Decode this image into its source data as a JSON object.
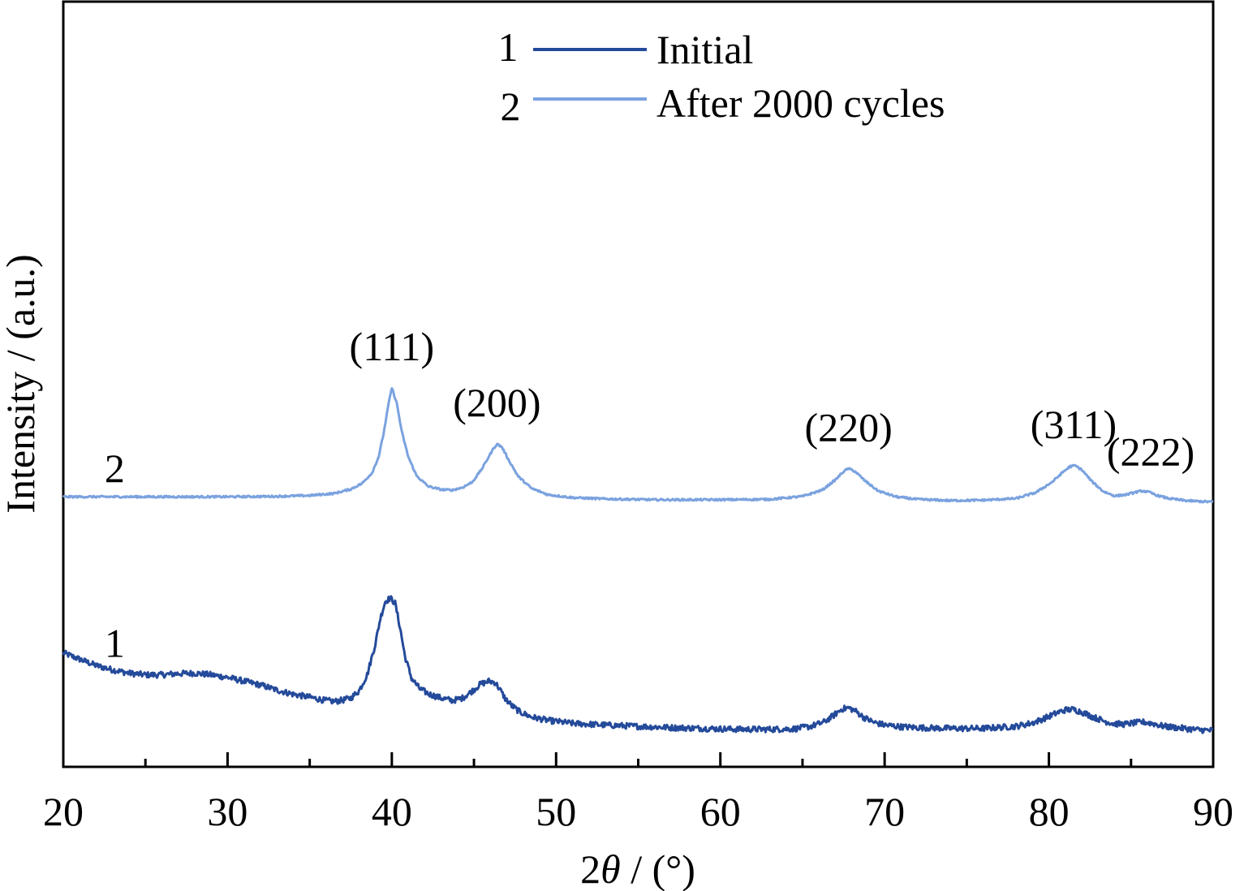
{
  "chart_data": {
    "type": "line",
    "title": "",
    "xlabel_prefix": "2",
    "xlabel_symbol": "θ",
    "xlabel_suffix": " / (°)",
    "ylabel": "Intensity / (a.u.)",
    "xlim": [
      20,
      90
    ],
    "x_ticks": [
      20,
      30,
      40,
      50,
      60,
      70,
      80,
      90
    ],
    "x_minor_ticks": [
      25,
      35,
      45,
      55,
      65,
      75,
      85
    ],
    "y_ticks": [],
    "grid": false,
    "legend_position": "top-center",
    "legend": [
      {
        "number": "1",
        "label": "Initial",
        "color": "#244a9a"
      },
      {
        "number": "2",
        "label": "After 2000 cycles",
        "color": "#7aa2df"
      }
    ],
    "series": [
      {
        "name": "Initial",
        "curve_label": "1",
        "color": "#244a9a",
        "x": [
          20,
          21,
          22,
          23,
          24,
          25,
          26,
          27,
          28,
          29,
          30,
          31,
          32,
          33,
          34,
          35,
          36,
          36.5,
          37,
          37.5,
          38,
          38.5,
          39,
          39.3,
          39.6,
          39.9,
          40.2,
          40.5,
          40.8,
          41.2,
          41.7,
          42.3,
          43,
          43.7,
          44.3,
          44.9,
          45.4,
          45.9,
          46.3,
          46.6,
          46.9,
          47.3,
          47.8,
          48.5,
          49.5,
          51,
          53,
          55,
          57,
          59,
          61,
          63,
          64.5,
          65.5,
          66.3,
          66.9,
          67.4,
          67.8,
          68.2,
          68.7,
          69.3,
          70,
          71,
          72,
          74,
          76,
          78,
          79,
          79.8,
          80.5,
          81,
          81.5,
          82,
          82.7,
          83.4,
          84,
          84.6,
          85.2,
          85.8,
          86.4,
          87,
          88,
          89,
          90
        ],
        "y": [
          270,
          255,
          240,
          230,
          222,
          218,
          218,
          221,
          222,
          218,
          212,
          203,
          194,
          182,
          172,
          165,
          157,
          155,
          158,
          163,
          180,
          218,
          292,
          352,
          392,
          400,
          388,
          330,
          262,
          210,
          185,
          172,
          163,
          157,
          163,
          180,
          196,
          203,
          200,
          182,
          162,
          145,
          130,
          118,
          110,
          103,
          99,
          96,
          93,
          91,
          89,
          89,
          90,
          96,
          106,
          122,
          137,
          140,
          133,
          118,
          106,
          99,
          95,
          93,
          91,
          91,
          96,
          104,
          116,
          128,
          135,
          136,
          130,
          118,
          108,
          102,
          101,
          104,
          106,
          102,
          96,
          92,
          88,
          86
        ]
      },
      {
        "name": "After 2000 cycles",
        "curve_label": "2",
        "color": "#7aa2df",
        "x": [
          20,
          25,
          30,
          33,
          35,
          36.5,
          37.5,
          38.2,
          38.8,
          39.2,
          39.5,
          39.8,
          40.0,
          40.3,
          40.6,
          41.0,
          41.5,
          42.2,
          43,
          43.7,
          44.3,
          44.9,
          45.5,
          45.9,
          46.2,
          46.4,
          46.7,
          47.1,
          47.7,
          48.5,
          49.5,
          51,
          53,
          56,
          60,
          63,
          65,
          66.2,
          67,
          67.5,
          67.8,
          68.2,
          68.8,
          69.6,
          70.7,
          72,
          74,
          76,
          78,
          79.2,
          80.2,
          80.9,
          81.3,
          81.6,
          82,
          82.6,
          83.3,
          84,
          84.7,
          85.3,
          85.7,
          86.1,
          86.6,
          87.3,
          88.3,
          89.2,
          90
        ],
        "y": [
          640,
          640,
          640,
          641,
          643,
          648,
          658,
          672,
          697,
          735,
          790,
          860,
          898,
          862,
          795,
          735,
          690,
          665,
          657,
          656,
          662,
          675,
          707,
          735,
          755,
          765,
          758,
          728,
          688,
          660,
          645,
          638,
          635,
          633,
          633,
          634,
          641,
          656,
          680,
          700,
          707,
          700,
          678,
          654,
          640,
          634,
          631,
          632,
          636,
          650,
          675,
          700,
          712,
          714,
          704,
          677,
          653,
          642,
          645,
          651,
          654,
          651,
          643,
          636,
          631,
          629,
          628
        ]
      }
    ],
    "annotations": [
      {
        "text": "(111)",
        "x": 40.0
      },
      {
        "text": "(200)",
        "x": 46.4
      },
      {
        "text": "(220)",
        "x": 67.8
      },
      {
        "text": "(311)",
        "x": 81.5
      },
      {
        "text": "(222)",
        "x": 86.2
      }
    ]
  }
}
